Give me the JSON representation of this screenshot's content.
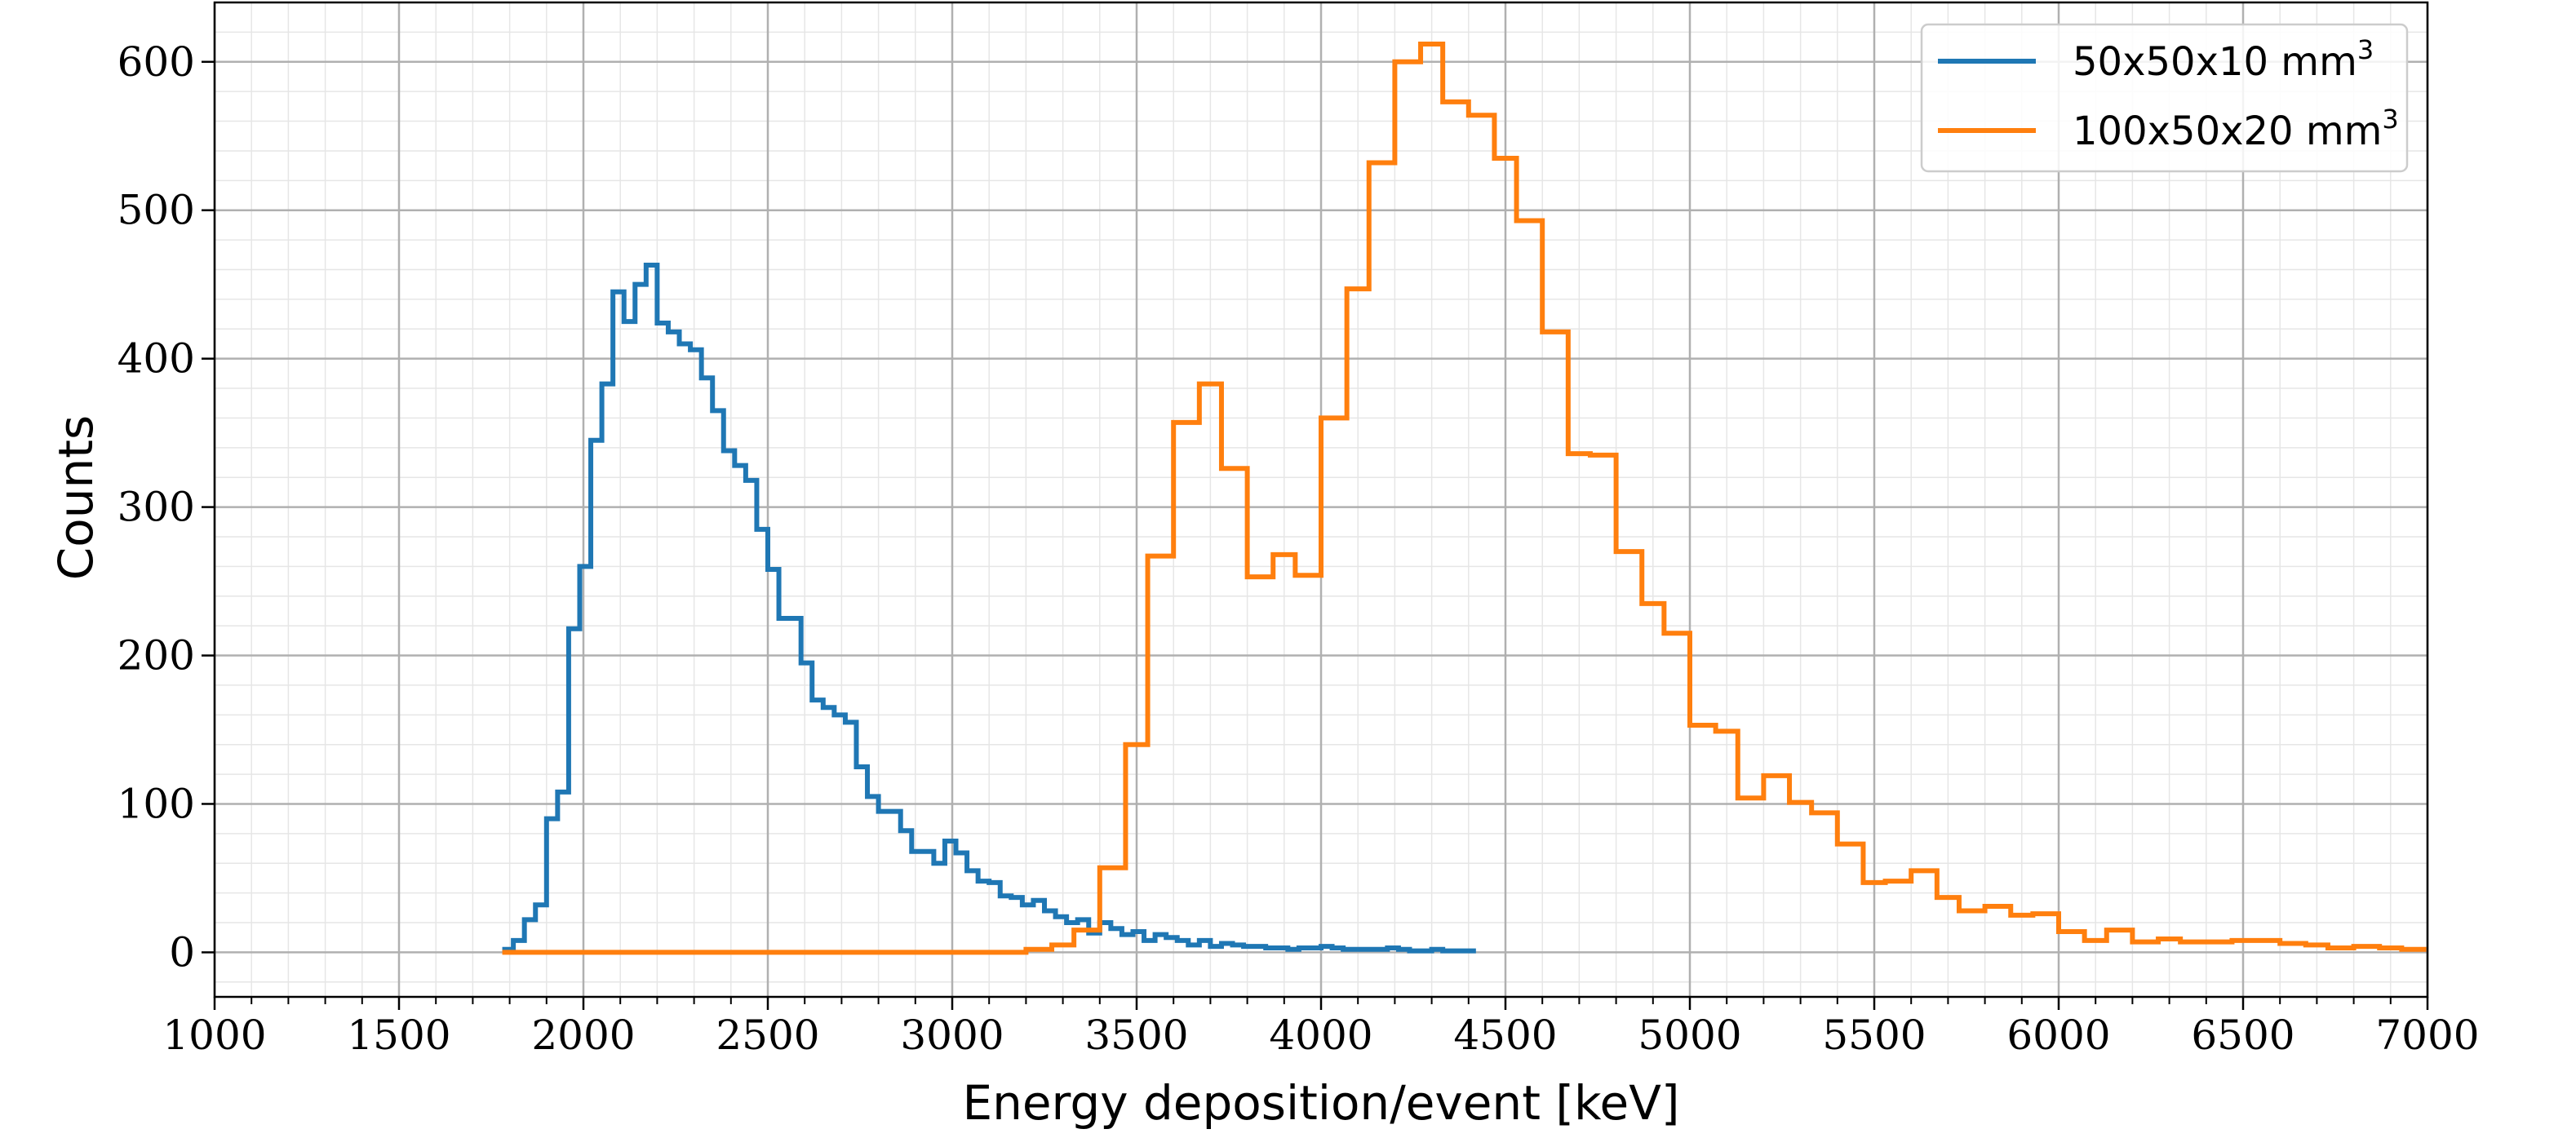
{
  "chart_data": {
    "type": "line",
    "step": true,
    "xlabel": "Energy deposition/event [keV]",
    "ylabel": "Counts",
    "xlim": [
      1000,
      7000
    ],
    "ylim": [
      -30,
      640
    ],
    "xticks": [
      1000,
      1500,
      2000,
      2500,
      3000,
      3500,
      4000,
      4500,
      5000,
      5500,
      6000,
      6500,
      7000
    ],
    "yticks": [
      0,
      100,
      200,
      300,
      400,
      500,
      600
    ],
    "grid": true,
    "minor_grid": true,
    "legend_position": "top-right",
    "colors": {
      "series1": "#1f77b4",
      "series2": "#ff7f0e",
      "grid": "#b0b0b0",
      "minor_grid": "#e6e6e6"
    },
    "series": [
      {
        "name": "50x50x10 mm",
        "name_superscript": "3",
        "x": [
          1780,
          1810,
          1840,
          1870,
          1900,
          1930,
          1960,
          1990,
          2020,
          2050,
          2080,
          2110,
          2140,
          2170,
          2200,
          2230,
          2260,
          2290,
          2320,
          2350,
          2380,
          2410,
          2440,
          2470,
          2500,
          2530,
          2560,
          2590,
          2620,
          2650,
          2680,
          2710,
          2740,
          2770,
          2800,
          2830,
          2860,
          2890,
          2920,
          2950,
          2980,
          3010,
          3040,
          3070,
          3100,
          3130,
          3160,
          3190,
          3220,
          3250,
          3280,
          3310,
          3340,
          3370,
          3400,
          3430,
          3460,
          3490,
          3520,
          3550,
          3580,
          3610,
          3640,
          3670,
          3700,
          3730,
          3760,
          3790,
          3820,
          3850,
          3880,
          3910,
          3940,
          3970,
          4000,
          4030,
          4060,
          4090,
          4120,
          4150,
          4180,
          4210,
          4240,
          4270,
          4300,
          4330,
          4360,
          4390
        ],
        "values": [
          2,
          8,
          22,
          32,
          90,
          108,
          218,
          260,
          345,
          383,
          445,
          425,
          450,
          463,
          424,
          418,
          410,
          406,
          387,
          365,
          338,
          328,
          318,
          285,
          258,
          225,
          225,
          195,
          170,
          165,
          160,
          155,
          125,
          105,
          95,
          95,
          82,
          68,
          68,
          60,
          75,
          67,
          55,
          48,
          47,
          38,
          37,
          32,
          35,
          28,
          24,
          20,
          22,
          13,
          20,
          16,
          12,
          14,
          8,
          12,
          10,
          8,
          5,
          8,
          4,
          6,
          5,
          4,
          4,
          3,
          3,
          2,
          3,
          3,
          4,
          3,
          2,
          2,
          2,
          2,
          3,
          2,
          1,
          1,
          2,
          1,
          1,
          1
        ],
        "bin_width": 30
      },
      {
        "name": "100x50x20 mm",
        "name_superscript": "3",
        "x": [
          1780,
          3200,
          3270,
          3330,
          3400,
          3470,
          3530,
          3600,
          3670,
          3730,
          3800,
          3870,
          3930,
          4000,
          4070,
          4130,
          4200,
          4270,
          4330,
          4400,
          4470,
          4530,
          4600,
          4670,
          4730,
          4800,
          4870,
          4930,
          5000,
          5070,
          5130,
          5200,
          5270,
          5330,
          5400,
          5470,
          5530,
          5600,
          5670,
          5730,
          5800,
          5870,
          5930,
          6000,
          6070,
          6130,
          6200,
          6270,
          6330,
          6400,
          6470,
          6530,
          6600,
          6670,
          6730,
          6800,
          6870,
          6930
        ],
        "values": [
          0,
          2,
          5,
          15,
          57,
          140,
          267,
          357,
          383,
          326,
          253,
          268,
          254,
          360,
          447,
          532,
          600,
          612,
          573,
          564,
          535,
          493,
          418,
          336,
          335,
          270,
          235,
          215,
          153,
          149,
          104,
          119,
          101,
          94,
          73,
          47,
          48,
          55,
          37,
          28,
          31,
          25,
          26,
          14,
          8,
          15,
          7,
          9,
          7,
          7,
          8,
          8,
          6,
          5,
          3,
          4,
          3,
          2
        ],
        "bin_width": 67
      }
    ]
  }
}
